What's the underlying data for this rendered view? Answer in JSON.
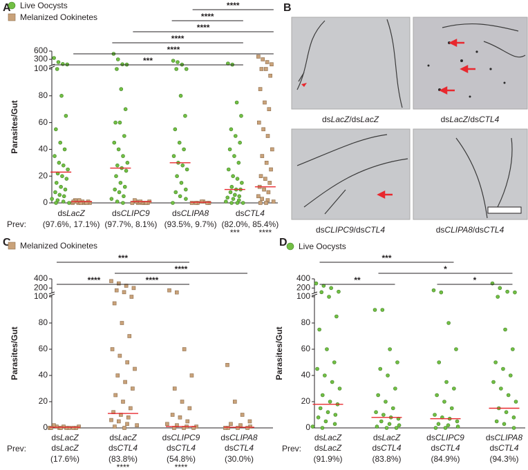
{
  "panels": [
    "A",
    "B",
    "C",
    "D"
  ],
  "images": {
    "labels": [
      [
        [
          "ds",
          "LacZ",
          "/ds",
          "LacZ"
        ]
      ],
      [
        [
          "ds",
          "LacZ",
          "/ds",
          "CTL4"
        ]
      ],
      [
        [
          "ds",
          "CLIPC9",
          "/ds",
          "CTL4"
        ]
      ],
      [
        [
          "ds",
          "CLIPA8",
          "/ds",
          "CTL4"
        ]
      ]
    ]
  },
  "chart_data": [
    {
      "type": "dot",
      "ylabel": "Parasites/Gut",
      "prev_label": "Prev:",
      "categories": [
        [
          [
            "ds",
            "LacZ"
          ]
        ],
        [
          [
            "ds",
            "CLIPC9"
          ]
        ],
        [
          [
            "ds",
            "CLIPA8"
          ]
        ],
        [
          [
            "ds",
            "CTL4"
          ]
        ]
      ],
      "series": [
        {
          "name": "Live Oocysts",
          "color": "#72bf44",
          "marker": "circle",
          "values": [
            [
              350,
              200,
              130,
              115,
              100,
              80,
              65,
              55,
              45,
              40,
              35,
              30,
              28,
              25,
              22,
              20,
              18,
              15,
              12,
              10,
              8,
              6,
              5,
              3,
              2,
              1,
              0,
              0
            ],
            [
              500,
              300,
              120,
              110,
              100,
              85,
              70,
              60,
              60,
              50,
              45,
              40,
              35,
              30,
              28,
              26,
              24,
              20,
              15,
              12,
              10,
              8,
              5,
              3,
              1,
              0
            ],
            [
              250,
              200,
              110,
              100,
              100,
              80,
              65,
              55,
              45,
              40,
              35,
              30,
              28,
              25,
              20,
              15,
              10,
              8,
              5,
              3,
              0
            ],
            [
              150,
              110,
              75,
              65,
              55,
              50,
              45,
              40,
              35,
              30,
              25,
              20,
              18,
              15,
              12,
              10,
              10,
              8,
              6,
              5,
              4,
              3,
              2,
              1,
              0,
              0,
              0
            ]
          ],
          "medians": [
            23,
            26,
            30,
            10
          ]
        },
        {
          "name": "Melanized Ookinetes",
          "color": "#c9a27a",
          "marker": "square",
          "values": [
            [
              0,
              0,
              0,
              0,
              1,
              1,
              1,
              2,
              0,
              0,
              1,
              2
            ],
            [
              0,
              0,
              0,
              1,
              1,
              0,
              0,
              2,
              1,
              0
            ],
            [
              0,
              0,
              1,
              0,
              0,
              1,
              0
            ],
            [
              400,
              300,
              200,
              120,
              100,
              100,
              95,
              85,
              75,
              70,
              60,
              55,
              50,
              40,
              35,
              30,
              25,
              20,
              18,
              15,
              12,
              10,
              8,
              5,
              3,
              2,
              1,
              0,
              0
            ]
          ],
          "medians": [
            1,
            1,
            0.5,
            12
          ]
        }
      ],
      "prevalence": [
        "(97.6%, 17.1%)",
        "(97.7%, 8.1%)",
        "(93.5%, 9.7%)",
        "(82.0%, 85.4%)"
      ],
      "prevalence_colors": [
        "#231f20",
        "#231f20",
        "#231f20",
        "#e8282e"
      ],
      "stars": [
        {
          "category": 3,
          "series": 0,
          "label": "***"
        },
        {
          "category": 3,
          "series": 1,
          "label": "****"
        }
      ],
      "significance": [
        {
          "from": [
            0,
            0
          ],
          "to": [
            3,
            0
          ],
          "label": "***"
        },
        {
          "from": [
            0,
            1
          ],
          "to": [
            3,
            1
          ],
          "label": "****"
        },
        {
          "from": [
            1,
            0
          ],
          "to": [
            3,
            0
          ],
          "label": "****"
        },
        {
          "from": [
            1,
            1
          ],
          "to": [
            3,
            1
          ],
          "label": "****"
        },
        {
          "from": [
            2,
            0
          ],
          "to": [
            3,
            0
          ],
          "label": "****"
        },
        {
          "from": [
            2,
            1
          ],
          "to": [
            3,
            1
          ],
          "label": "****"
        }
      ],
      "sig_color": "#e8282e",
      "median_color": "#e8282e",
      "ylim": [
        0,
        600
      ],
      "ybreak": 100,
      "yticks": [
        0,
        20,
        40,
        60,
        80,
        100,
        300,
        600
      ]
    },
    {
      "type": "dot",
      "ylabel": "Parasites/Gut",
      "prev_label": "Prev:",
      "categories": [
        [
          [
            "ds",
            "LacZ"
          ],
          [
            "ds",
            "LacZ"
          ]
        ],
        [
          [
            "ds",
            "LacZ"
          ],
          [
            "ds",
            "CTL4"
          ]
        ],
        [
          [
            "ds",
            "CLIPC9"
          ],
          [
            "ds",
            "CTL4"
          ]
        ],
        [
          [
            "ds",
            "CLIPA8"
          ],
          [
            "ds",
            "CTL4"
          ]
        ]
      ],
      "series": [
        {
          "name": "Melanized Ookinetes",
          "color": "#c9a27a",
          "marker": "square",
          "values": [
            [
              0,
              0,
              0,
              1,
              1,
              0,
              0,
              2,
              1,
              0,
              0,
              0
            ],
            [
              350,
              300,
              250,
              200,
              150,
              110,
              100,
              95,
              80,
              70,
              60,
              55,
              50,
              45,
              40,
              35,
              30,
              25,
              20,
              15,
              12,
              10,
              8,
              6,
              5,
              3,
              2,
              1,
              0
            ],
            [
              150,
              105,
              60,
              40,
              30,
              20,
              15,
              10,
              8,
              5,
              3,
              2,
              1,
              1,
              0,
              0,
              0
            ],
            [
              48,
              20,
              10,
              5,
              3,
              2,
              1,
              0,
              0,
              0,
              0
            ]
          ],
          "medians": [
            0.5,
            11,
            1,
            0.5
          ]
        }
      ],
      "prevalence": [
        "(17.6%)",
        "(83.8%)",
        "(54.8%)",
        "(30.0%)"
      ],
      "prevalence_colors": [
        "#231f20",
        "#e8282e",
        "#e8282e",
        "#231f20"
      ],
      "stars": [
        {
          "category": 1,
          "series": 0,
          "label": "****"
        },
        {
          "category": 2,
          "series": 0,
          "label": "****"
        }
      ],
      "significance": [
        {
          "from": [
            0,
            0
          ],
          "to": [
            1,
            0
          ],
          "label": "****"
        },
        {
          "from": [
            1,
            0
          ],
          "to": [
            2,
            0
          ],
          "label": "****"
        },
        {
          "from": [
            1,
            0
          ],
          "to": [
            3,
            0
          ],
          "label": "****"
        },
        {
          "from": [
            0,
            0
          ],
          "to": [
            2,
            0
          ],
          "label": "***"
        }
      ],
      "sig_color": "#e8282e",
      "median_color": "#e8282e",
      "ylim": [
        0,
        400
      ],
      "ybreak": 100,
      "yticks": [
        0,
        20,
        40,
        60,
        80,
        100,
        200,
        400
      ]
    },
    {
      "type": "dot",
      "ylabel": "Parasites/Gut",
      "prev_label": "Prev:",
      "categories": [
        [
          [
            "ds",
            "LacZ"
          ],
          [
            "ds",
            "LacZ"
          ]
        ],
        [
          [
            "ds",
            "LacZ"
          ],
          [
            "ds",
            "CTL4"
          ]
        ],
        [
          [
            "ds",
            "CLIPC9"
          ],
          [
            "ds",
            "CTL4"
          ]
        ],
        [
          [
            "ds",
            "CLIPA8"
          ],
          [
            "ds",
            "CTL4"
          ]
        ]
      ],
      "series": [
        {
          "name": "Live Oocysts",
          "color": "#72bf44",
          "marker": "circle",
          "values": [
            [
              300,
              250,
              200,
              120,
              110,
              100,
              85,
              75,
              60,
              50,
              45,
              40,
              35,
              30,
              25,
              20,
              18,
              15,
              12,
              10,
              8,
              5,
              3,
              1,
              0
            ],
            [
              90,
              90,
              60,
              50,
              45,
              40,
              30,
              25,
              20,
              15,
              12,
              10,
              8,
              7,
              5,
              3,
              2,
              1,
              0,
              0
            ],
            [
              150,
              105,
              80,
              60,
              50,
              35,
              30,
              25,
              20,
              15,
              10,
              8,
              7,
              5,
              3,
              2,
              1,
              0,
              0
            ],
            [
              300,
              200,
              120,
              105,
              100,
              75,
              60,
              50,
              45,
              40,
              35,
              30,
              25,
              20,
              15,
              12,
              8,
              5,
              3,
              0
            ]
          ],
          "medians": [
            18,
            8,
            7,
            15
          ]
        }
      ],
      "prevalence": [
        "(91.9%)",
        "(83.8%)",
        "(84.9%)",
        "(94.3%)"
      ],
      "prevalence_colors": [
        "#231f20",
        "#231f20",
        "#231f20",
        "#231f20"
      ],
      "stars": [],
      "significance": [
        {
          "from": [
            0,
            0
          ],
          "to": [
            1,
            0
          ],
          "label": "**"
        },
        {
          "from": [
            2,
            0
          ],
          "to": [
            3,
            0
          ],
          "label": "*"
        },
        {
          "from": [
            1,
            0
          ],
          "to": [
            3,
            0
          ],
          "label": "*"
        },
        {
          "from": [
            0,
            0
          ],
          "to": [
            2,
            0
          ],
          "label": "***"
        }
      ],
      "sig_color": "#e8282e",
      "median_color": "#e8282e",
      "ylim": [
        0,
        400
      ],
      "ybreak": 100,
      "yticks": [
        0,
        20,
        40,
        60,
        80,
        100,
        200,
        400
      ]
    }
  ]
}
